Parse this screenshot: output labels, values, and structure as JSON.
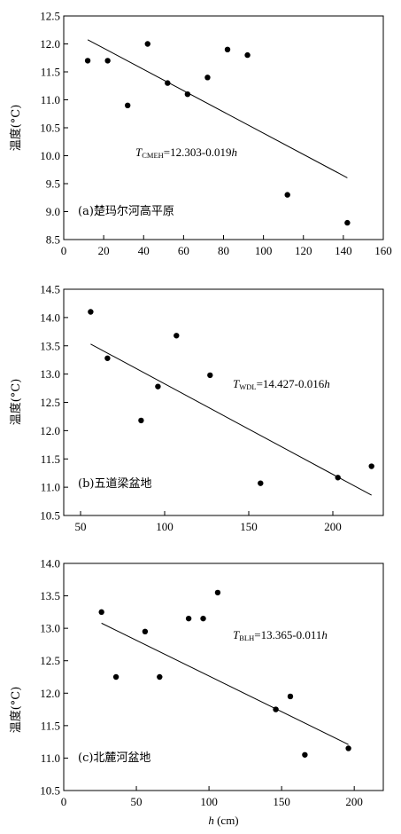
{
  "chart_data": [
    {
      "type": "scatter",
      "panel_label": "(a)楚玛尔河高平原",
      "equation_var": "T",
      "equation_sub": "CMEH",
      "equation_rhs": "=12.303-0.019",
      "equation_h": "h",
      "ylabel": "温度(°C)",
      "xlabel": "",
      "xlim": [
        0,
        160
      ],
      "ylim": [
        8.5,
        12.5
      ],
      "xticks": [
        0,
        20,
        40,
        60,
        80,
        100,
        120,
        140,
        160
      ],
      "yticks": [
        8.5,
        9.0,
        9.5,
        10.0,
        10.5,
        11.0,
        11.5,
        12.0,
        12.5
      ],
      "points": [
        {
          "x": 12,
          "y": 11.7
        },
        {
          "x": 22,
          "y": 11.7
        },
        {
          "x": 32,
          "y": 10.9
        },
        {
          "x": 42,
          "y": 12.0
        },
        {
          "x": 52,
          "y": 11.3
        },
        {
          "x": 62,
          "y": 11.1
        },
        {
          "x": 72,
          "y": 11.4
        },
        {
          "x": 82,
          "y": 11.9
        },
        {
          "x": 92,
          "y": 11.8
        },
        {
          "x": 112,
          "y": 9.3
        },
        {
          "x": 142,
          "y": 8.8
        }
      ],
      "fit": {
        "intercept": 12.303,
        "slope": -0.019,
        "x_range": [
          12,
          142
        ]
      }
    },
    {
      "type": "scatter",
      "panel_label": "(b)五道梁盆地",
      "equation_var": "T",
      "equation_sub": "WDL",
      "equation_rhs": "=14.427-0.016",
      "equation_h": "h",
      "ylabel": "温度(°C)",
      "xlabel": "",
      "xlim": [
        40,
        230
      ],
      "ylim": [
        10.5,
        14.5
      ],
      "xticks": [
        50,
        100,
        150,
        200
      ],
      "yticks": [
        10.5,
        11.0,
        11.5,
        12.0,
        12.5,
        13.0,
        13.5,
        14.0,
        14.5
      ],
      "points": [
        {
          "x": 56,
          "y": 14.1
        },
        {
          "x": 66,
          "y": 13.28
        },
        {
          "x": 86,
          "y": 12.18
        },
        {
          "x": 96,
          "y": 12.78
        },
        {
          "x": 107,
          "y": 13.68
        },
        {
          "x": 127,
          "y": 12.98
        },
        {
          "x": 157,
          "y": 11.07
        },
        {
          "x": 203,
          "y": 11.17
        },
        {
          "x": 223,
          "y": 11.37
        }
      ],
      "fit": {
        "intercept": 14.427,
        "slope": -0.016,
        "x_range": [
          56,
          223
        ]
      }
    },
    {
      "type": "scatter",
      "panel_label": "(c)北麓河盆地",
      "equation_var": "T",
      "equation_sub": "BLH",
      "equation_rhs": "=13.365-0.011",
      "equation_h": "h",
      "ylabel": "温度(°C)",
      "xlabel_var": "h",
      "xlabel_unit": " (cm)",
      "xlim": [
        0,
        220
      ],
      "ylim": [
        10.5,
        14.0
      ],
      "xticks": [
        0,
        50,
        100,
        150,
        200
      ],
      "yticks": [
        10.5,
        11.0,
        11.5,
        12.0,
        12.5,
        13.0,
        13.5,
        14.0
      ],
      "points": [
        {
          "x": 26,
          "y": 13.25
        },
        {
          "x": 36,
          "y": 12.25
        },
        {
          "x": 56,
          "y": 12.95
        },
        {
          "x": 66,
          "y": 12.25
        },
        {
          "x": 86,
          "y": 13.15
        },
        {
          "x": 96,
          "y": 13.15
        },
        {
          "x": 106,
          "y": 13.55
        },
        {
          "x": 146,
          "y": 11.75
        },
        {
          "x": 156,
          "y": 11.95
        },
        {
          "x": 166,
          "y": 11.05
        },
        {
          "x": 196,
          "y": 11.15
        }
      ],
      "fit": {
        "intercept": 13.365,
        "slope": -0.011,
        "x_range": [
          26,
          196
        ]
      }
    }
  ]
}
